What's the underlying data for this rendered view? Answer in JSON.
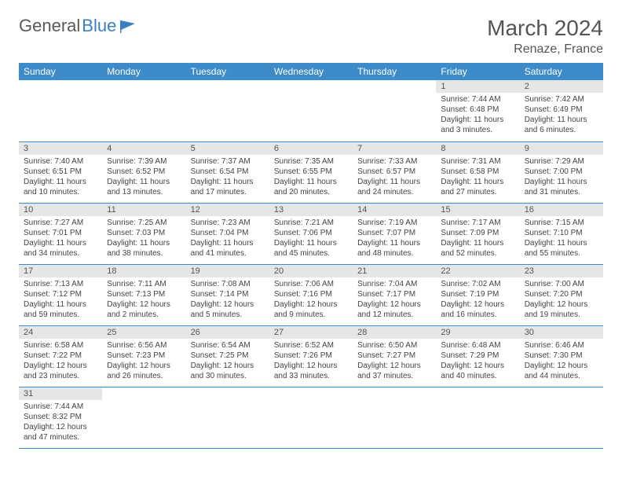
{
  "logo": {
    "text1": "General",
    "text2": "Blue"
  },
  "title": "March 2024",
  "location": "Renaze, France",
  "colors": {
    "headerBg": "#3d8bc9",
    "headerText": "#ffffff",
    "dayNumBg": "#e6e6e6",
    "borderColor": "#3d8bc9",
    "textColor": "#444444",
    "logoGray": "#5a5a5a",
    "logoBlue": "#3a7fc4"
  },
  "dayHeaders": [
    "Sunday",
    "Monday",
    "Tuesday",
    "Wednesday",
    "Thursday",
    "Friday",
    "Saturday"
  ],
  "weeks": [
    [
      null,
      null,
      null,
      null,
      null,
      {
        "n": "1",
        "sr": "7:44 AM",
        "ss": "6:48 PM",
        "dl": "11 hours and 3 minutes."
      },
      {
        "n": "2",
        "sr": "7:42 AM",
        "ss": "6:49 PM",
        "dl": "11 hours and 6 minutes."
      }
    ],
    [
      {
        "n": "3",
        "sr": "7:40 AM",
        "ss": "6:51 PM",
        "dl": "11 hours and 10 minutes."
      },
      {
        "n": "4",
        "sr": "7:39 AM",
        "ss": "6:52 PM",
        "dl": "11 hours and 13 minutes."
      },
      {
        "n": "5",
        "sr": "7:37 AM",
        "ss": "6:54 PM",
        "dl": "11 hours and 17 minutes."
      },
      {
        "n": "6",
        "sr": "7:35 AM",
        "ss": "6:55 PM",
        "dl": "11 hours and 20 minutes."
      },
      {
        "n": "7",
        "sr": "7:33 AM",
        "ss": "6:57 PM",
        "dl": "11 hours and 24 minutes."
      },
      {
        "n": "8",
        "sr": "7:31 AM",
        "ss": "6:58 PM",
        "dl": "11 hours and 27 minutes."
      },
      {
        "n": "9",
        "sr": "7:29 AM",
        "ss": "7:00 PM",
        "dl": "11 hours and 31 minutes."
      }
    ],
    [
      {
        "n": "10",
        "sr": "7:27 AM",
        "ss": "7:01 PM",
        "dl": "11 hours and 34 minutes."
      },
      {
        "n": "11",
        "sr": "7:25 AM",
        "ss": "7:03 PM",
        "dl": "11 hours and 38 minutes."
      },
      {
        "n": "12",
        "sr": "7:23 AM",
        "ss": "7:04 PM",
        "dl": "11 hours and 41 minutes."
      },
      {
        "n": "13",
        "sr": "7:21 AM",
        "ss": "7:06 PM",
        "dl": "11 hours and 45 minutes."
      },
      {
        "n": "14",
        "sr": "7:19 AM",
        "ss": "7:07 PM",
        "dl": "11 hours and 48 minutes."
      },
      {
        "n": "15",
        "sr": "7:17 AM",
        "ss": "7:09 PM",
        "dl": "11 hours and 52 minutes."
      },
      {
        "n": "16",
        "sr": "7:15 AM",
        "ss": "7:10 PM",
        "dl": "11 hours and 55 minutes."
      }
    ],
    [
      {
        "n": "17",
        "sr": "7:13 AM",
        "ss": "7:12 PM",
        "dl": "11 hours and 59 minutes."
      },
      {
        "n": "18",
        "sr": "7:11 AM",
        "ss": "7:13 PM",
        "dl": "12 hours and 2 minutes."
      },
      {
        "n": "19",
        "sr": "7:08 AM",
        "ss": "7:14 PM",
        "dl": "12 hours and 5 minutes."
      },
      {
        "n": "20",
        "sr": "7:06 AM",
        "ss": "7:16 PM",
        "dl": "12 hours and 9 minutes."
      },
      {
        "n": "21",
        "sr": "7:04 AM",
        "ss": "7:17 PM",
        "dl": "12 hours and 12 minutes."
      },
      {
        "n": "22",
        "sr": "7:02 AM",
        "ss": "7:19 PM",
        "dl": "12 hours and 16 minutes."
      },
      {
        "n": "23",
        "sr": "7:00 AM",
        "ss": "7:20 PM",
        "dl": "12 hours and 19 minutes."
      }
    ],
    [
      {
        "n": "24",
        "sr": "6:58 AM",
        "ss": "7:22 PM",
        "dl": "12 hours and 23 minutes."
      },
      {
        "n": "25",
        "sr": "6:56 AM",
        "ss": "7:23 PM",
        "dl": "12 hours and 26 minutes."
      },
      {
        "n": "26",
        "sr": "6:54 AM",
        "ss": "7:25 PM",
        "dl": "12 hours and 30 minutes."
      },
      {
        "n": "27",
        "sr": "6:52 AM",
        "ss": "7:26 PM",
        "dl": "12 hours and 33 minutes."
      },
      {
        "n": "28",
        "sr": "6:50 AM",
        "ss": "7:27 PM",
        "dl": "12 hours and 37 minutes."
      },
      {
        "n": "29",
        "sr": "6:48 AM",
        "ss": "7:29 PM",
        "dl": "12 hours and 40 minutes."
      },
      {
        "n": "30",
        "sr": "6:46 AM",
        "ss": "7:30 PM",
        "dl": "12 hours and 44 minutes."
      }
    ],
    [
      {
        "n": "31",
        "sr": "7:44 AM",
        "ss": "8:32 PM",
        "dl": "12 hours and 47 minutes."
      },
      null,
      null,
      null,
      null,
      null,
      null
    ]
  ],
  "labels": {
    "sunrise": "Sunrise: ",
    "sunset": "Sunset: ",
    "daylight": "Daylight: "
  }
}
